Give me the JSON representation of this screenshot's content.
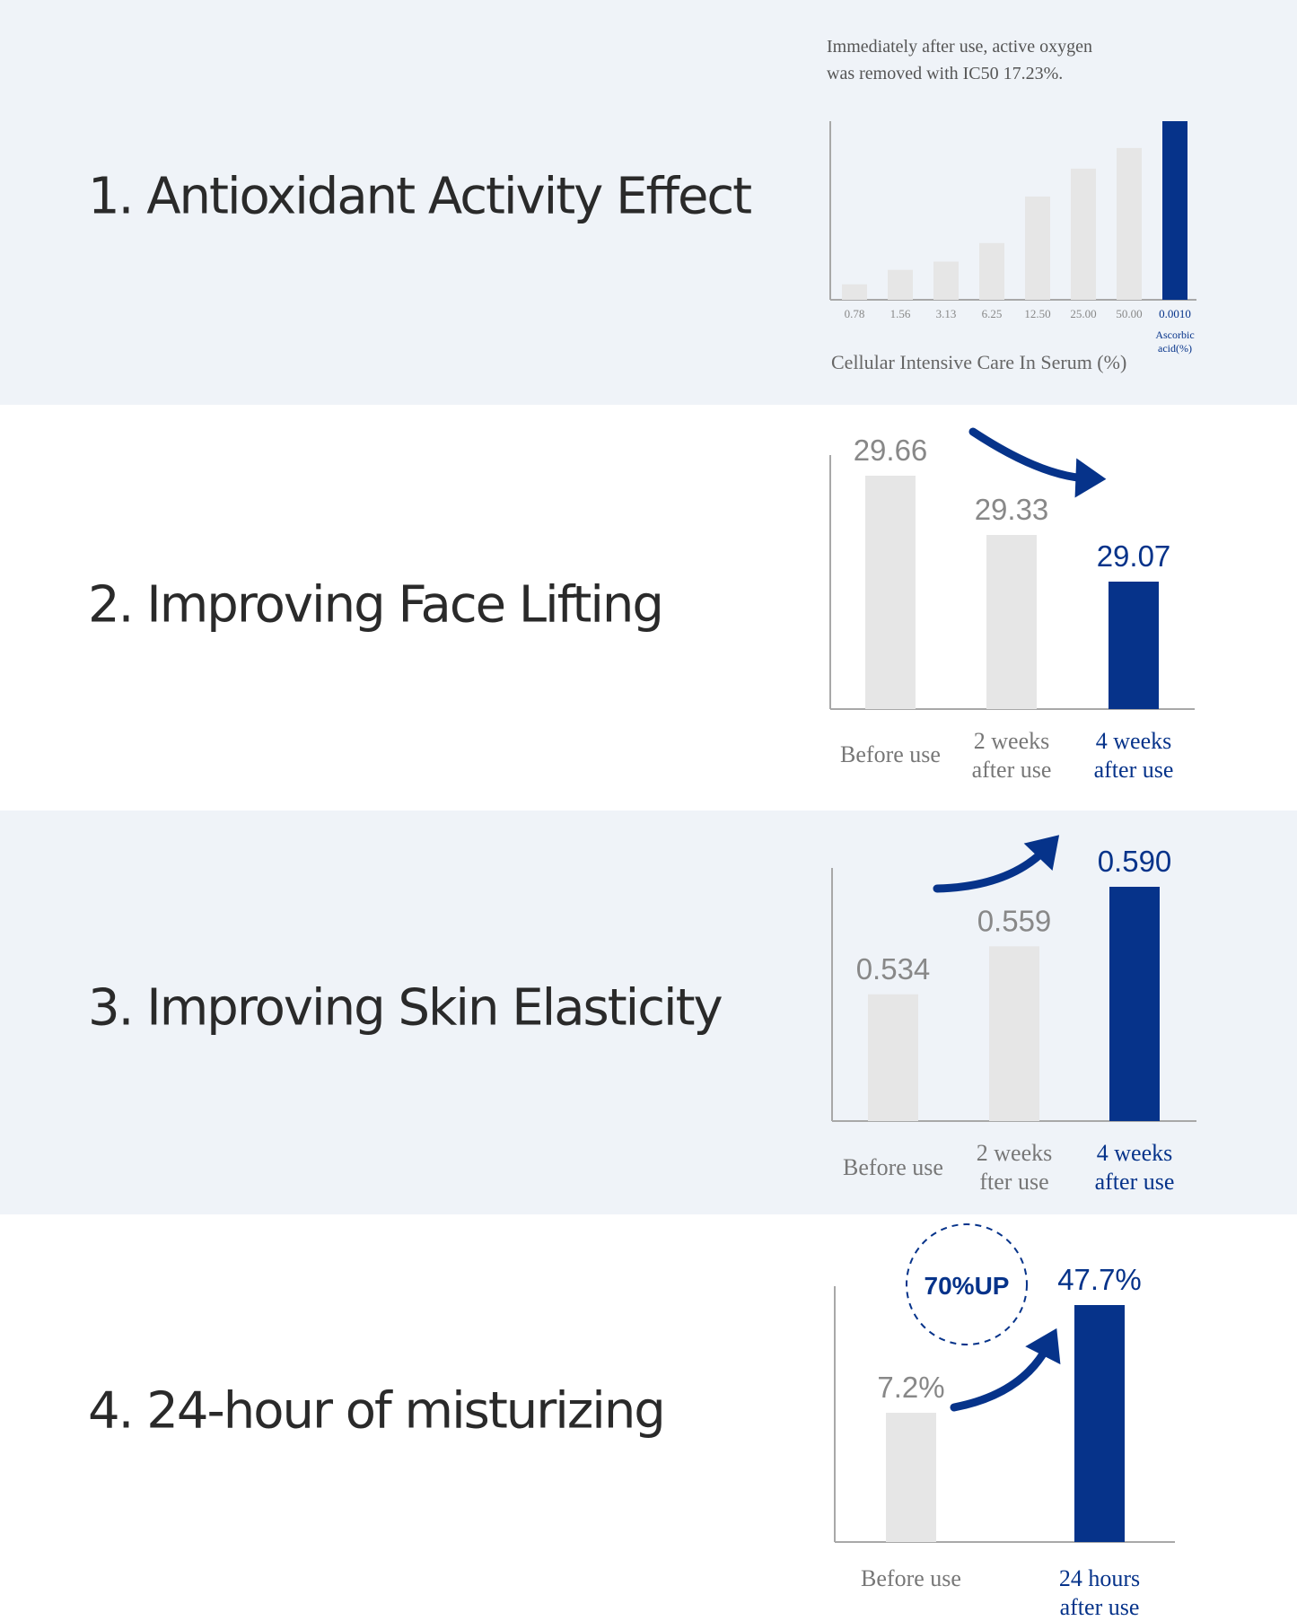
{
  "colors": {
    "accent": "#06338a",
    "bar_gray": "#e6e6e6",
    "axis": "#a8a8a8",
    "label_gray": "#777777",
    "bg_alt": "#eff3f8"
  },
  "sections": [
    {
      "title": "1. Antioxidant Activity Effect"
    },
    {
      "title": "2. Improving Face Lifting"
    },
    {
      "title": "3. Improving Skin Elasticity"
    },
    {
      "title": "4. 24-hour of misturizing"
    }
  ],
  "chart_data": [
    {
      "type": "bar",
      "title": "Immediately after use, active oxygen was removed with IC50 17.23%.",
      "title_lines": [
        "Immediately after use, active oxygen",
        "was removed with IC50 17.23%."
      ],
      "xlabel": "Cellular Intensive Care In Serum (%)",
      "ylabel": "",
      "categories": [
        "0.78",
        "1.56",
        "3.13",
        "6.25",
        "12.50",
        "25.00",
        "50.00",
        "0.0010"
      ],
      "category_sublabel": [
        "Ascorbic",
        "acid(%)"
      ],
      "values": [
        15,
        29,
        37,
        55,
        100,
        127,
        147,
        173
      ],
      "value_note": "relative activity, estimated from bar heights",
      "highlight_index": 7,
      "ylim": [
        0,
        173
      ]
    },
    {
      "type": "bar",
      "categories": [
        [
          "Before use"
        ],
        [
          "2 weeks",
          "after use"
        ],
        [
          "4 weeks",
          "after use"
        ]
      ],
      "values": [
        29.66,
        29.33,
        29.07
      ],
      "value_labels": [
        "29.66",
        "29.33",
        "29.07"
      ],
      "highlight_index": 2,
      "trend": "down",
      "ylim": [
        28.36,
        29.66
      ]
    },
    {
      "type": "bar",
      "categories": [
        [
          "Before use"
        ],
        [
          "2 weeks",
          "fter use"
        ],
        [
          "4 weeks",
          "after use"
        ]
      ],
      "values": [
        0.534,
        0.559,
        0.59
      ],
      "value_labels": [
        "0.534",
        "0.559",
        "0.590"
      ],
      "highlight_index": 2,
      "trend": "up",
      "ylim": [
        0.468,
        0.59
      ]
    },
    {
      "type": "bar",
      "categories": [
        [
          "Before use"
        ],
        [
          "24 hours",
          "after use"
        ]
      ],
      "values": [
        7.2,
        47.7
      ],
      "value_labels": [
        "7.2%",
        "47.7%"
      ],
      "highlight_index": 1,
      "trend": "up",
      "badge": "70%UP",
      "ylim": [
        -41.4,
        47.7
      ]
    }
  ]
}
